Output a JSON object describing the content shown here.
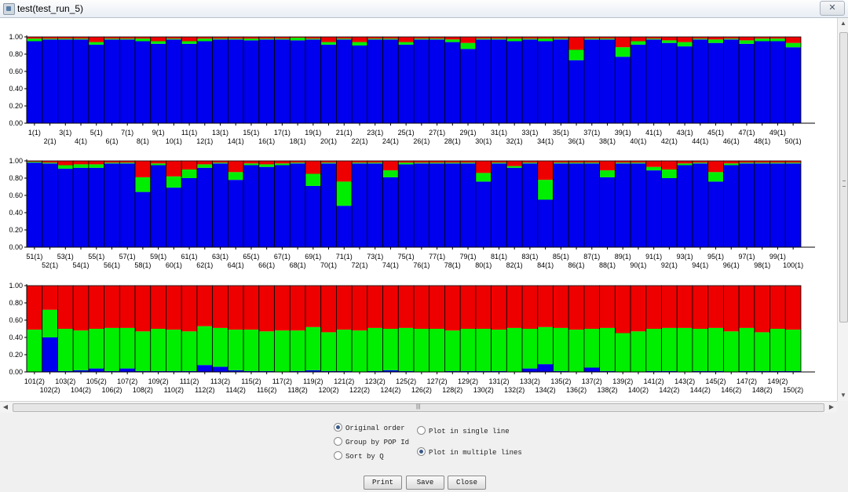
{
  "window": {
    "title": "test(test_run_5)",
    "close_glyph": "✕"
  },
  "colors": {
    "blue": "#0000ee",
    "green": "#00ee00",
    "red": "#ee0000"
  },
  "chart_data": [
    {
      "type": "bar",
      "stacked": true,
      "ylim": [
        0,
        1
      ],
      "yticks": [
        "1.00",
        "0.80",
        "0.60",
        "0.40",
        "0.20",
        "0.00"
      ],
      "categories": [
        "1(1)",
        "2(1)",
        "3(1)",
        "4(1)",
        "5(1)",
        "6(1)",
        "7(1)",
        "8(1)",
        "9(1)",
        "10(1)",
        "11(1)",
        "12(1)",
        "13(1)",
        "14(1)",
        "15(1)",
        "16(1)",
        "17(1)",
        "18(1)",
        "19(1)",
        "20(1)",
        "21(1)",
        "22(1)",
        "23(1)",
        "24(1)",
        "25(1)",
        "26(1)",
        "27(1)",
        "28(1)",
        "29(1)",
        "30(1)",
        "31(1)",
        "32(1)",
        "33(1)",
        "34(1)",
        "35(1)",
        "36(1)",
        "37(1)",
        "38(1)",
        "39(1)",
        "40(1)",
        "41(1)",
        "42(1)",
        "43(1)",
        "44(1)",
        "45(1)",
        "46(1)",
        "47(1)",
        "48(1)",
        "49(1)",
        "50(1)"
      ],
      "series": [
        {
          "color": "blue",
          "values": [
            0.95,
            0.97,
            0.97,
            0.97,
            0.91,
            0.97,
            0.97,
            0.95,
            0.92,
            0.97,
            0.92,
            0.95,
            0.97,
            0.97,
            0.96,
            0.97,
            0.97,
            0.96,
            0.97,
            0.91,
            0.97,
            0.9,
            0.97,
            0.97,
            0.91,
            0.97,
            0.97,
            0.94,
            0.86,
            0.97,
            0.97,
            0.95,
            0.97,
            0.95,
            0.97,
            0.73,
            0.97,
            0.97,
            0.77,
            0.91,
            0.97,
            0.93,
            0.89,
            0.97,
            0.93,
            0.97,
            0.92,
            0.95,
            0.95,
            0.88
          ]
        },
        {
          "color": "green",
          "values": [
            0.03,
            0.01,
            0.01,
            0.01,
            0.03,
            0.01,
            0.01,
            0.03,
            0.03,
            0.01,
            0.03,
            0.03,
            0.01,
            0.01,
            0.02,
            0.01,
            0.01,
            0.03,
            0.01,
            0.03,
            0.01,
            0.04,
            0.01,
            0.01,
            0.03,
            0.01,
            0.01,
            0.03,
            0.07,
            0.01,
            0.01,
            0.03,
            0.01,
            0.03,
            0.01,
            0.12,
            0.01,
            0.01,
            0.11,
            0.04,
            0.01,
            0.03,
            0.05,
            0.01,
            0.04,
            0.01,
            0.04,
            0.03,
            0.03,
            0.05
          ]
        },
        {
          "color": "red",
          "values": [
            0.02,
            0.02,
            0.02,
            0.02,
            0.06,
            0.02,
            0.02,
            0.02,
            0.05,
            0.02,
            0.05,
            0.02,
            0.02,
            0.02,
            0.02,
            0.02,
            0.02,
            0.01,
            0.02,
            0.06,
            0.02,
            0.06,
            0.02,
            0.02,
            0.06,
            0.02,
            0.02,
            0.03,
            0.07,
            0.02,
            0.02,
            0.02,
            0.02,
            0.02,
            0.02,
            0.15,
            0.02,
            0.02,
            0.12,
            0.05,
            0.02,
            0.04,
            0.06,
            0.02,
            0.03,
            0.02,
            0.04,
            0.02,
            0.02,
            0.07
          ]
        }
      ]
    },
    {
      "type": "bar",
      "stacked": true,
      "ylim": [
        0,
        1
      ],
      "yticks": [
        "1.00",
        "0.80",
        "0.60",
        "0.40",
        "0.20",
        "0.00"
      ],
      "categories": [
        "51(1)",
        "52(1)",
        "53(1)",
        "54(1)",
        "55(1)",
        "56(1)",
        "57(1)",
        "58(1)",
        "59(1)",
        "60(1)",
        "61(1)",
        "62(1)",
        "63(1)",
        "64(1)",
        "65(1)",
        "66(1)",
        "67(1)",
        "68(1)",
        "69(1)",
        "70(1)",
        "71(1)",
        "72(1)",
        "73(1)",
        "74(1)",
        "75(1)",
        "76(1)",
        "77(1)",
        "78(1)",
        "79(1)",
        "80(1)",
        "81(1)",
        "82(1)",
        "83(1)",
        "84(1)",
        "85(1)",
        "86(1)",
        "87(1)",
        "88(1)",
        "89(1)",
        "90(1)",
        "91(1)",
        "92(1)",
        "93(1)",
        "94(1)",
        "95(1)",
        "96(1)",
        "97(1)",
        "98(1)",
        "99(1)",
        "100(1)"
      ],
      "series": [
        {
          "color": "blue",
          "values": [
            0.98,
            0.97,
            0.91,
            0.92,
            0.92,
            0.97,
            0.97,
            0.64,
            0.95,
            0.69,
            0.8,
            0.92,
            0.97,
            0.78,
            0.95,
            0.93,
            0.95,
            0.97,
            0.71,
            0.97,
            0.48,
            0.97,
            0.97,
            0.81,
            0.96,
            0.97,
            0.97,
            0.97,
            0.97,
            0.76,
            0.97,
            0.92,
            0.97,
            0.55,
            0.97,
            0.97,
            0.97,
            0.81,
            0.97,
            0.97,
            0.89,
            0.8,
            0.95,
            0.97,
            0.76,
            0.95,
            0.97,
            0.97,
            0.97,
            0.97
          ]
        },
        {
          "color": "green",
          "values": [
            0.01,
            0.01,
            0.04,
            0.04,
            0.04,
            0.01,
            0.01,
            0.17,
            0.02,
            0.13,
            0.1,
            0.04,
            0.01,
            0.09,
            0.02,
            0.03,
            0.02,
            0.01,
            0.14,
            0.01,
            0.28,
            0.01,
            0.01,
            0.08,
            0.02,
            0.01,
            0.01,
            0.01,
            0.01,
            0.1,
            0.01,
            0.02,
            0.01,
            0.23,
            0.01,
            0.01,
            0.01,
            0.08,
            0.01,
            0.01,
            0.04,
            0.1,
            0.02,
            0.01,
            0.11,
            0.02,
            0.01,
            0.01,
            0.01,
            0.01
          ]
        },
        {
          "color": "red",
          "values": [
            0.01,
            0.02,
            0.05,
            0.04,
            0.04,
            0.02,
            0.02,
            0.19,
            0.03,
            0.18,
            0.1,
            0.04,
            0.02,
            0.13,
            0.03,
            0.04,
            0.03,
            0.02,
            0.15,
            0.02,
            0.24,
            0.02,
            0.02,
            0.11,
            0.02,
            0.02,
            0.02,
            0.02,
            0.02,
            0.14,
            0.02,
            0.06,
            0.02,
            0.22,
            0.02,
            0.02,
            0.02,
            0.11,
            0.02,
            0.02,
            0.07,
            0.1,
            0.03,
            0.02,
            0.13,
            0.03,
            0.02,
            0.02,
            0.02,
            0.02
          ]
        }
      ]
    },
    {
      "type": "bar",
      "stacked": true,
      "ylim": [
        0,
        1
      ],
      "yticks": [
        "1.00",
        "0.80",
        "0.60",
        "0.40",
        "0.20",
        "0.00"
      ],
      "categories": [
        "101(2)",
        "102(2)",
        "103(2)",
        "104(2)",
        "105(2)",
        "106(2)",
        "107(2)",
        "108(2)",
        "109(2)",
        "110(2)",
        "111(2)",
        "112(2)",
        "113(2)",
        "114(2)",
        "115(2)",
        "116(2)",
        "117(2)",
        "118(2)",
        "119(2)",
        "120(2)",
        "121(2)",
        "122(2)",
        "123(2)",
        "124(2)",
        "125(2)",
        "126(2)",
        "127(2)",
        "128(2)",
        "129(2)",
        "130(2)",
        "131(2)",
        "132(2)",
        "133(2)",
        "134(2)",
        "135(2)",
        "136(2)",
        "137(2)",
        "138(2)",
        "139(2)",
        "140(2)",
        "141(2)",
        "142(2)",
        "143(2)",
        "144(2)",
        "145(2)",
        "146(2)",
        "147(2)",
        "148(2)",
        "149(2)",
        "150(2)"
      ],
      "series": [
        {
          "color": "blue",
          "values": [
            0.0,
            0.4,
            0.01,
            0.02,
            0.04,
            0.01,
            0.04,
            0.01,
            0.01,
            0.01,
            0.01,
            0.08,
            0.06,
            0.02,
            0.01,
            0.01,
            0.0,
            0.01,
            0.02,
            0.01,
            0.01,
            0.0,
            0.01,
            0.02,
            0.01,
            0.0,
            0.0,
            0.01,
            0.01,
            0.01,
            0.01,
            0.0,
            0.04,
            0.09,
            0.01,
            0.0,
            0.05,
            0.01,
            0.0,
            0.0,
            0.01,
            0.01,
            0.0,
            0.01,
            0.01,
            0.0,
            0.01,
            0.01,
            0.01,
            0.01
          ]
        },
        {
          "color": "green",
          "values": [
            0.49,
            0.32,
            0.49,
            0.46,
            0.46,
            0.5,
            0.47,
            0.46,
            0.49,
            0.48,
            0.46,
            0.45,
            0.45,
            0.47,
            0.48,
            0.46,
            0.48,
            0.47,
            0.5,
            0.45,
            0.48,
            0.48,
            0.5,
            0.48,
            0.5,
            0.5,
            0.5,
            0.47,
            0.49,
            0.49,
            0.48,
            0.51,
            0.46,
            0.43,
            0.5,
            0.49,
            0.45,
            0.5,
            0.45,
            0.47,
            0.49,
            0.5,
            0.51,
            0.49,
            0.5,
            0.47,
            0.5,
            0.45,
            0.49,
            0.48
          ]
        },
        {
          "color": "red",
          "values": [
            0.51,
            0.28,
            0.5,
            0.52,
            0.5,
            0.49,
            0.49,
            0.53,
            0.5,
            0.51,
            0.53,
            0.47,
            0.49,
            0.51,
            0.51,
            0.53,
            0.52,
            0.52,
            0.48,
            0.54,
            0.51,
            0.52,
            0.49,
            0.5,
            0.49,
            0.5,
            0.5,
            0.52,
            0.5,
            0.5,
            0.51,
            0.49,
            0.5,
            0.48,
            0.49,
            0.51,
            0.5,
            0.49,
            0.55,
            0.53,
            0.5,
            0.49,
            0.49,
            0.5,
            0.49,
            0.53,
            0.49,
            0.54,
            0.5,
            0.51
          ]
        }
      ]
    }
  ],
  "options": {
    "original_order": "Original order",
    "group_by_pop": "Group by POP Id",
    "sort_by_q": "Sort by Q",
    "single_line": "Plot in single line",
    "multiple_lines": "Plot in multiple lines"
  },
  "buttons": {
    "print": "Print",
    "save": "Save",
    "close": "Close"
  }
}
